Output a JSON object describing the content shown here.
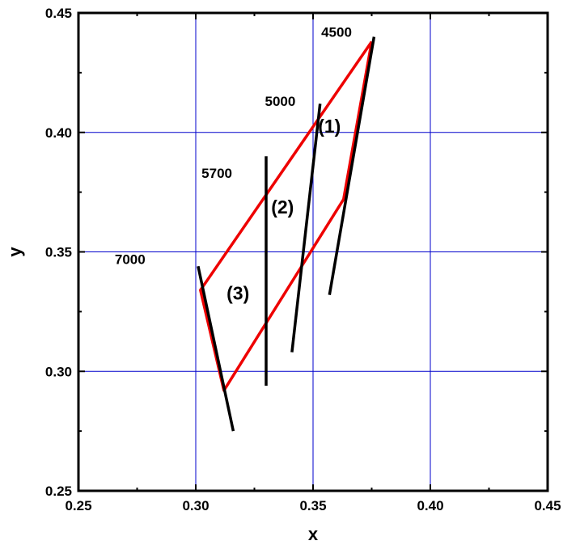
{
  "chart_data": {
    "type": "line",
    "xlabel": "x",
    "ylabel": "y",
    "xlim": [
      0.25,
      0.45
    ],
    "ylim": [
      0.25,
      0.45
    ],
    "xticks": [
      0.25,
      0.3,
      0.35,
      0.4,
      0.45
    ],
    "yticks": [
      0.25,
      0.3,
      0.35,
      0.4,
      0.45
    ],
    "xtick_labels": [
      "0.25",
      "0.30",
      "0.35",
      "0.40",
      "0.45"
    ],
    "ytick_labels": [
      "0.25",
      "0.30",
      "0.35",
      "0.40",
      "0.45"
    ],
    "grid": true,
    "colors": {
      "grid": "#0000cc",
      "quadrilateral": "#ee0000",
      "isotemperature_lines": "#000000"
    },
    "quadrilateral": {
      "x": [
        0.375,
        0.363,
        0.312,
        0.302,
        0.375
      ],
      "y": [
        0.438,
        0.372,
        0.292,
        0.334,
        0.438
      ]
    },
    "isotemperature_lines": [
      {
        "x": [
          0.376,
          0.357
        ],
        "y": [
          0.44,
          0.332
        ]
      },
      {
        "x": [
          0.353,
          0.341
        ],
        "y": [
          0.412,
          0.308
        ]
      },
      {
        "x": [
          0.33,
          0.33
        ],
        "y": [
          0.39,
          0.294
        ]
      },
      {
        "x": [
          0.301,
          0.316
        ],
        "y": [
          0.344,
          0.275
        ]
      }
    ],
    "annotations": [
      {
        "text": "4500",
        "x": 0.36,
        "y": 0.44,
        "kind": "temp"
      },
      {
        "text": "5000",
        "x": 0.336,
        "y": 0.411,
        "kind": "temp"
      },
      {
        "text": "5700",
        "x": 0.309,
        "y": 0.381,
        "kind": "temp"
      },
      {
        "text": "7000",
        "x": 0.272,
        "y": 0.345,
        "kind": "temp"
      },
      {
        "text": "(1)",
        "x": 0.357,
        "y": 0.4,
        "kind": "region"
      },
      {
        "text": "(2)",
        "x": 0.337,
        "y": 0.366,
        "kind": "region"
      },
      {
        "text": "(3)",
        "x": 0.318,
        "y": 0.33,
        "kind": "region"
      }
    ]
  }
}
